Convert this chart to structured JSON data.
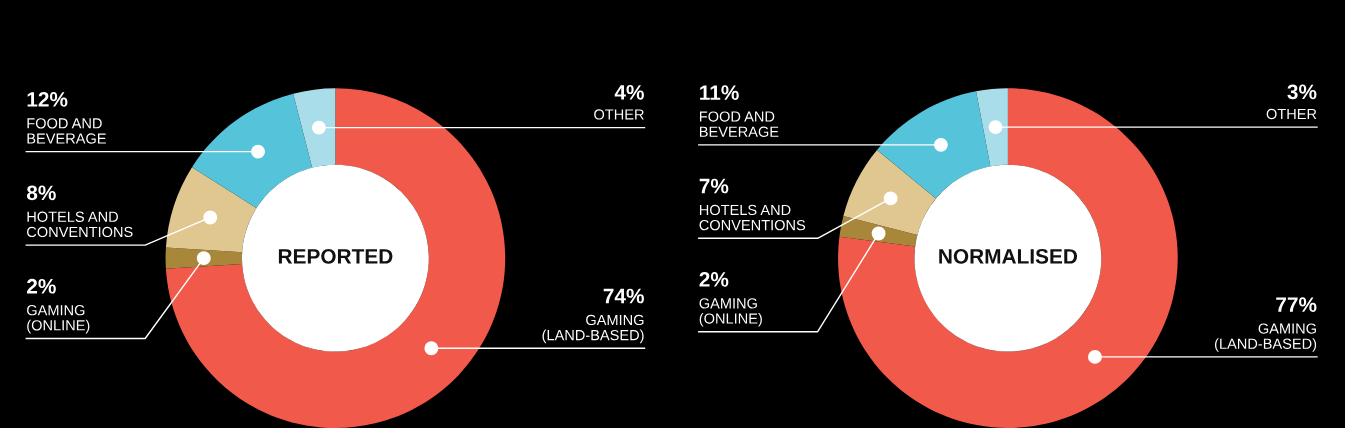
{
  "chart_data": [
    {
      "type": "donut",
      "title": "REPORTED",
      "categories": [
        "GAMING\n(LAND-BASED)",
        "GAMING\n(ONLINE)",
        "HOTELS AND\nCONVENTIONS",
        "FOOD AND\nBEVERAGE",
        "OTHER"
      ],
      "values": [
        74,
        2,
        8,
        12,
        4
      ],
      "colors": [
        "#f15a4a",
        "#a8873a",
        "#dfc78f",
        "#55c3d9",
        "#a9dde9"
      ],
      "value_labels": [
        "74%",
        "2%",
        "8%",
        "12%",
        "4%"
      ],
      "legend": false
    },
    {
      "type": "donut",
      "title": "NORMALISED",
      "categories": [
        "GAMING\n(LAND-BASED)",
        "GAMING\n(ONLINE)",
        "HOTELS AND\nCONVENTIONS",
        "FOOD AND\nBEVERAGE",
        "OTHER"
      ],
      "values": [
        77,
        2,
        7,
        11,
        3
      ],
      "colors": [
        "#f15a4a",
        "#a8873a",
        "#dfc78f",
        "#55c3d9",
        "#a9dde9"
      ],
      "value_labels": [
        "77%",
        "2%",
        "7%",
        "11%",
        "3%"
      ],
      "legend": false
    }
  ]
}
